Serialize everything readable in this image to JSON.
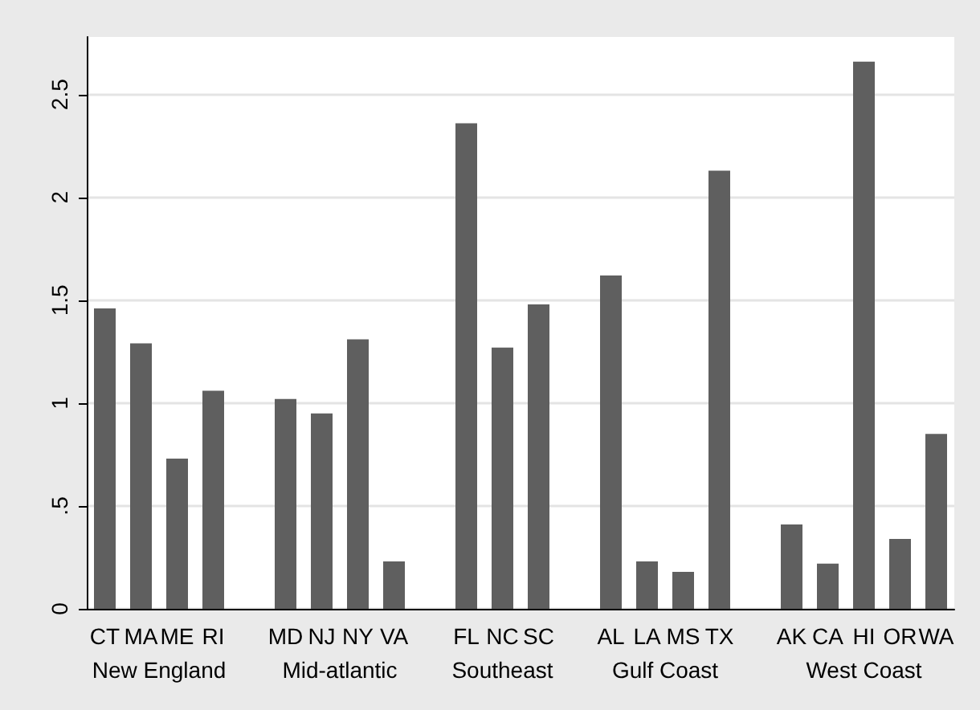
{
  "chart_data": {
    "type": "bar",
    "categories": [
      "CT",
      "MA",
      "ME",
      "RI",
      null,
      "MD",
      "NJ",
      "NY",
      "VA",
      null,
      "FL",
      "NC",
      "SC",
      null,
      "AL",
      "LA",
      "MS",
      "TX",
      null,
      "AK",
      "CA",
      "HI",
      "OR",
      "WA"
    ],
    "values": [
      1.46,
      1.29,
      0.73,
      1.06,
      null,
      1.02,
      0.95,
      1.31,
      0.23,
      null,
      2.36,
      1.27,
      1.48,
      null,
      1.62,
      0.23,
      0.18,
      2.13,
      null,
      0.41,
      0.22,
      2.66,
      0.34,
      0.85
    ],
    "color": "#5f5f5f",
    "annotations": [
      "New England",
      "Mid-atlantic",
      "Southeast",
      "Gulf Coast",
      "West Coast"
    ],
    "ylim": [
      0,
      2.78
    ],
    "yticks": [
      0,
      {
        "value": 0.5,
        "label": ".5"
      },
      1,
      1.5,
      2,
      2.5
    ],
    "grid": "y"
  }
}
